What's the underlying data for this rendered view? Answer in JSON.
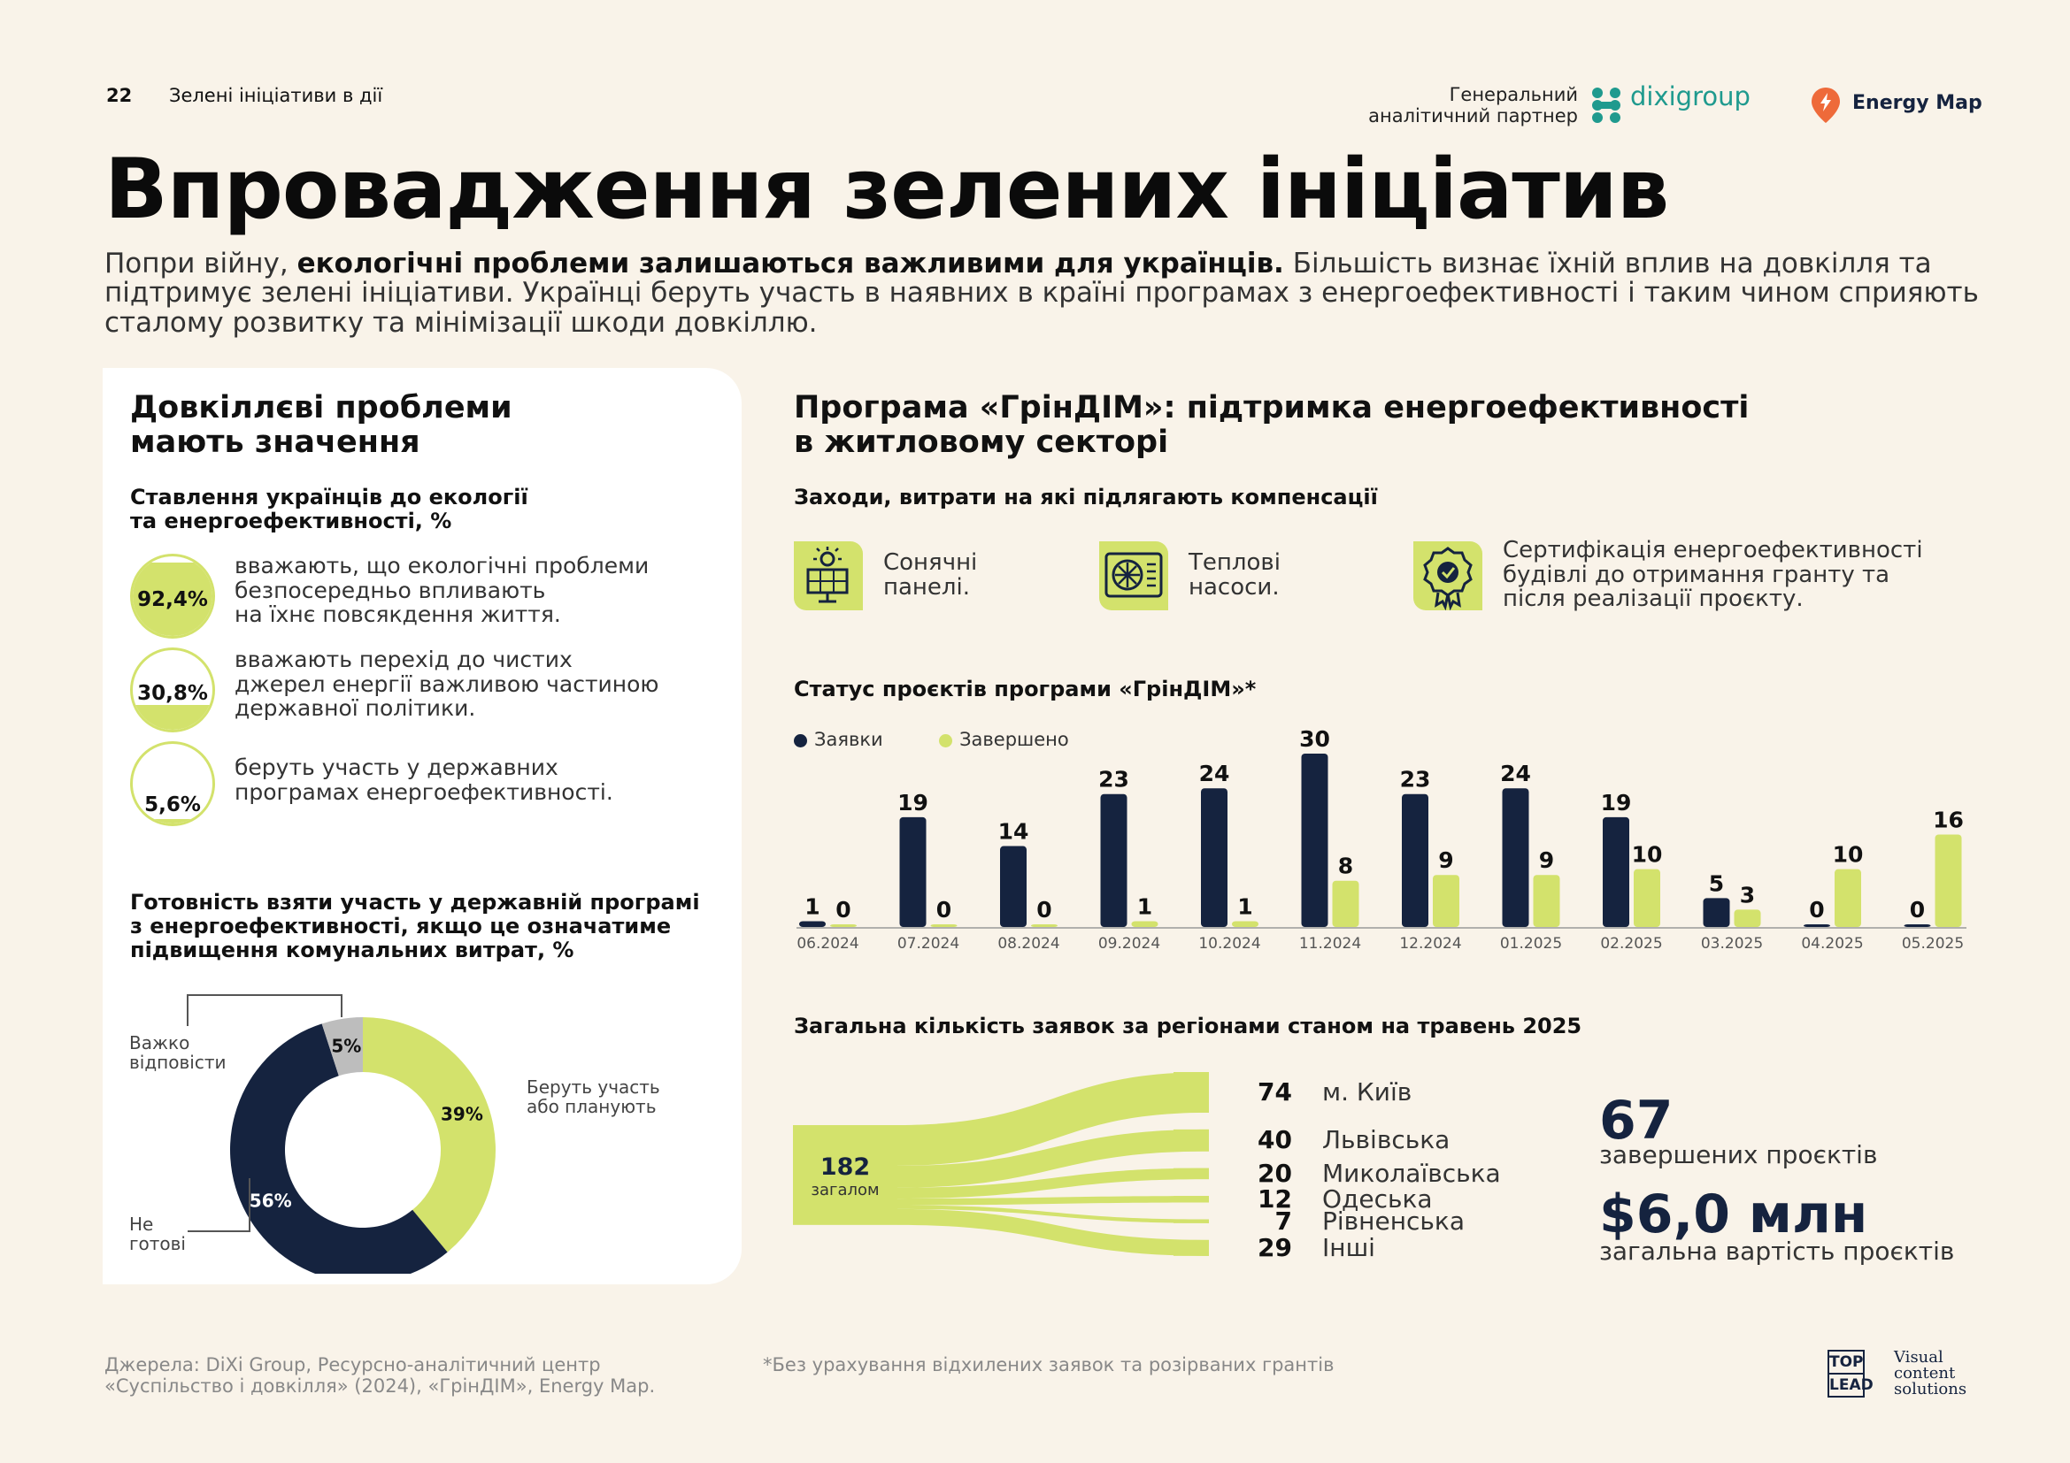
{
  "header": {
    "page_number": "22",
    "running_title": "Зелені ініціативи в дії",
    "partner_label_1": "Генеральний",
    "partner_label_2": "аналітичний партнер",
    "partner_logo_text": "dixigroup",
    "energy_map_label": "Energy Map"
  },
  "title": "Впровадження зелених ініціатив",
  "intro": {
    "pre": "Попри війну, ",
    "bold": "екологічні проблеми залишаються важливими для українців.",
    "post": " Більшість визнає їхній вплив на довкілля та підтримує зелені ініціативи. Українці беруть участь в наявних в країні програмах з енергоефективності і таким чином сприяють сталому розвитку та мінімізації шкоди довкіллю."
  },
  "left": {
    "heading_1": "Довкіллєві проблеми",
    "heading_2": "мають значення",
    "attitudes_title_1": "Ставлення українців до екології",
    "attitudes_title_2": "та енергоефективності, %",
    "stats": [
      {
        "value": "92,4%",
        "fraction": 0.924,
        "line1": "вважають, що екологічні проблеми",
        "line2": "безпосередньо впливають",
        "line3": "на їхнє повсякдення життя."
      },
      {
        "value": "30,8%",
        "fraction": 0.308,
        "line1": "вважають перехід до чистих",
        "line2": "джерел енергії важливою частиною",
        "line3": "державної політики."
      },
      {
        "value": "5,6%",
        "fraction": 0.056,
        "line1": "беруть участь у державних",
        "line2": "програмах енергоефективності.",
        "line3": ""
      }
    ],
    "readiness_title_1": "Готовність взяти участь у державній програмі",
    "readiness_title_2": "з енергоефективності, якщо це означатиме",
    "readiness_title_3": "підвищення комунальних витрат, %"
  },
  "right": {
    "heading_1": "Програма «ГрінДІМ»: підтримка енергоефективності",
    "heading_2": "в житловому секторі",
    "measures_title": "Заходи, витрати на які підлягають компенсації",
    "measures": [
      {
        "icon": "solar-panel-icon",
        "line1": "Сонячні",
        "line2": "панелі.",
        "line3": ""
      },
      {
        "icon": "heat-pump-icon",
        "line1": "Теплові",
        "line2": "насоси.",
        "line3": ""
      },
      {
        "icon": "certificate-badge-icon",
        "line1": "Сертифікація енергоефективності",
        "line2": "будівлі до отримання гранту та",
        "line3": "після реалізації проєкту."
      }
    ],
    "status_title": "Статус проєктів програми «ГрінДІМ»*",
    "regions_title": "Загальна кількість заявок за регіонами станом на травень 2025",
    "total_value": "182",
    "total_label": "загалом",
    "completed_value": "67",
    "completed_label": "завершених проєктів",
    "cost_value": "$6,0 млн",
    "cost_label": "загальна вартість проєктів"
  },
  "chart_data": [
    {
      "type": "bar",
      "title": "Статус проєктів програми «ГрінДІМ»*",
      "categories": [
        "06.2024",
        "07.2024",
        "08.2024",
        "09.2024",
        "10.2024",
        "11.2024",
        "12.2024",
        "01.2025",
        "02.2025",
        "03.2025",
        "04.2025",
        "05.2025"
      ],
      "series": [
        {
          "name": "Заявки",
          "color": "#15233f",
          "values": [
            1,
            19,
            14,
            23,
            24,
            30,
            23,
            24,
            19,
            5,
            0,
            0
          ]
        },
        {
          "name": "Завершено",
          "color": "#d3e26c",
          "values": [
            0,
            0,
            0,
            1,
            1,
            8,
            9,
            9,
            10,
            3,
            10,
            16
          ]
        }
      ],
      "legend": "top-left",
      "grid": false,
      "ylim": [
        0,
        30
      ]
    },
    {
      "type": "pie",
      "title": "Готовність взяти участь у державній програмі з енергоефективності, якщо це означатиме підвищення комунальних витрат, %",
      "slices": [
        {
          "label": "Беруть участь або планують",
          "value": 39,
          "display": "39%",
          "color": "#d3e26c"
        },
        {
          "label": "Не готові",
          "value": 56,
          "display": "56%",
          "color": "#15233f"
        },
        {
          "label": "Важко відповісти",
          "value": 5,
          "display": "5%",
          "color": "#bdbdbd"
        }
      ]
    },
    {
      "type": "sankey",
      "title": "Загальна кількість заявок за регіонами станом на травень 2025",
      "total": 182,
      "flows": [
        {
          "label": "м. Київ",
          "value": 74
        },
        {
          "label": "Львівська",
          "value": 40
        },
        {
          "label": "Миколаївська",
          "value": 20
        },
        {
          "label": "Одеська",
          "value": 12
        },
        {
          "label": "Рівненська",
          "value": 7
        },
        {
          "label": "Інші",
          "value": 29
        }
      ]
    }
  ],
  "footer": {
    "sources_1": "Джерела: DiXi Group, Ресурсно-аналітичний центр",
    "sources_2": "«Суспільство і довкілля» (2024), «ГрінДІМ», Energy Map.",
    "note": "*Без урахування відхилених заявок та розірваних грантів",
    "brand_top": "TOP",
    "brand_bottom": "LEAD",
    "brand_tag_1": "Visual",
    "brand_tag_2": "content",
    "brand_tag_3": "solutions"
  },
  "colors": {
    "navy": "#15233f",
    "lime": "#d3e26c",
    "gray": "#bdbdbd",
    "background": "#f9f3e9"
  }
}
